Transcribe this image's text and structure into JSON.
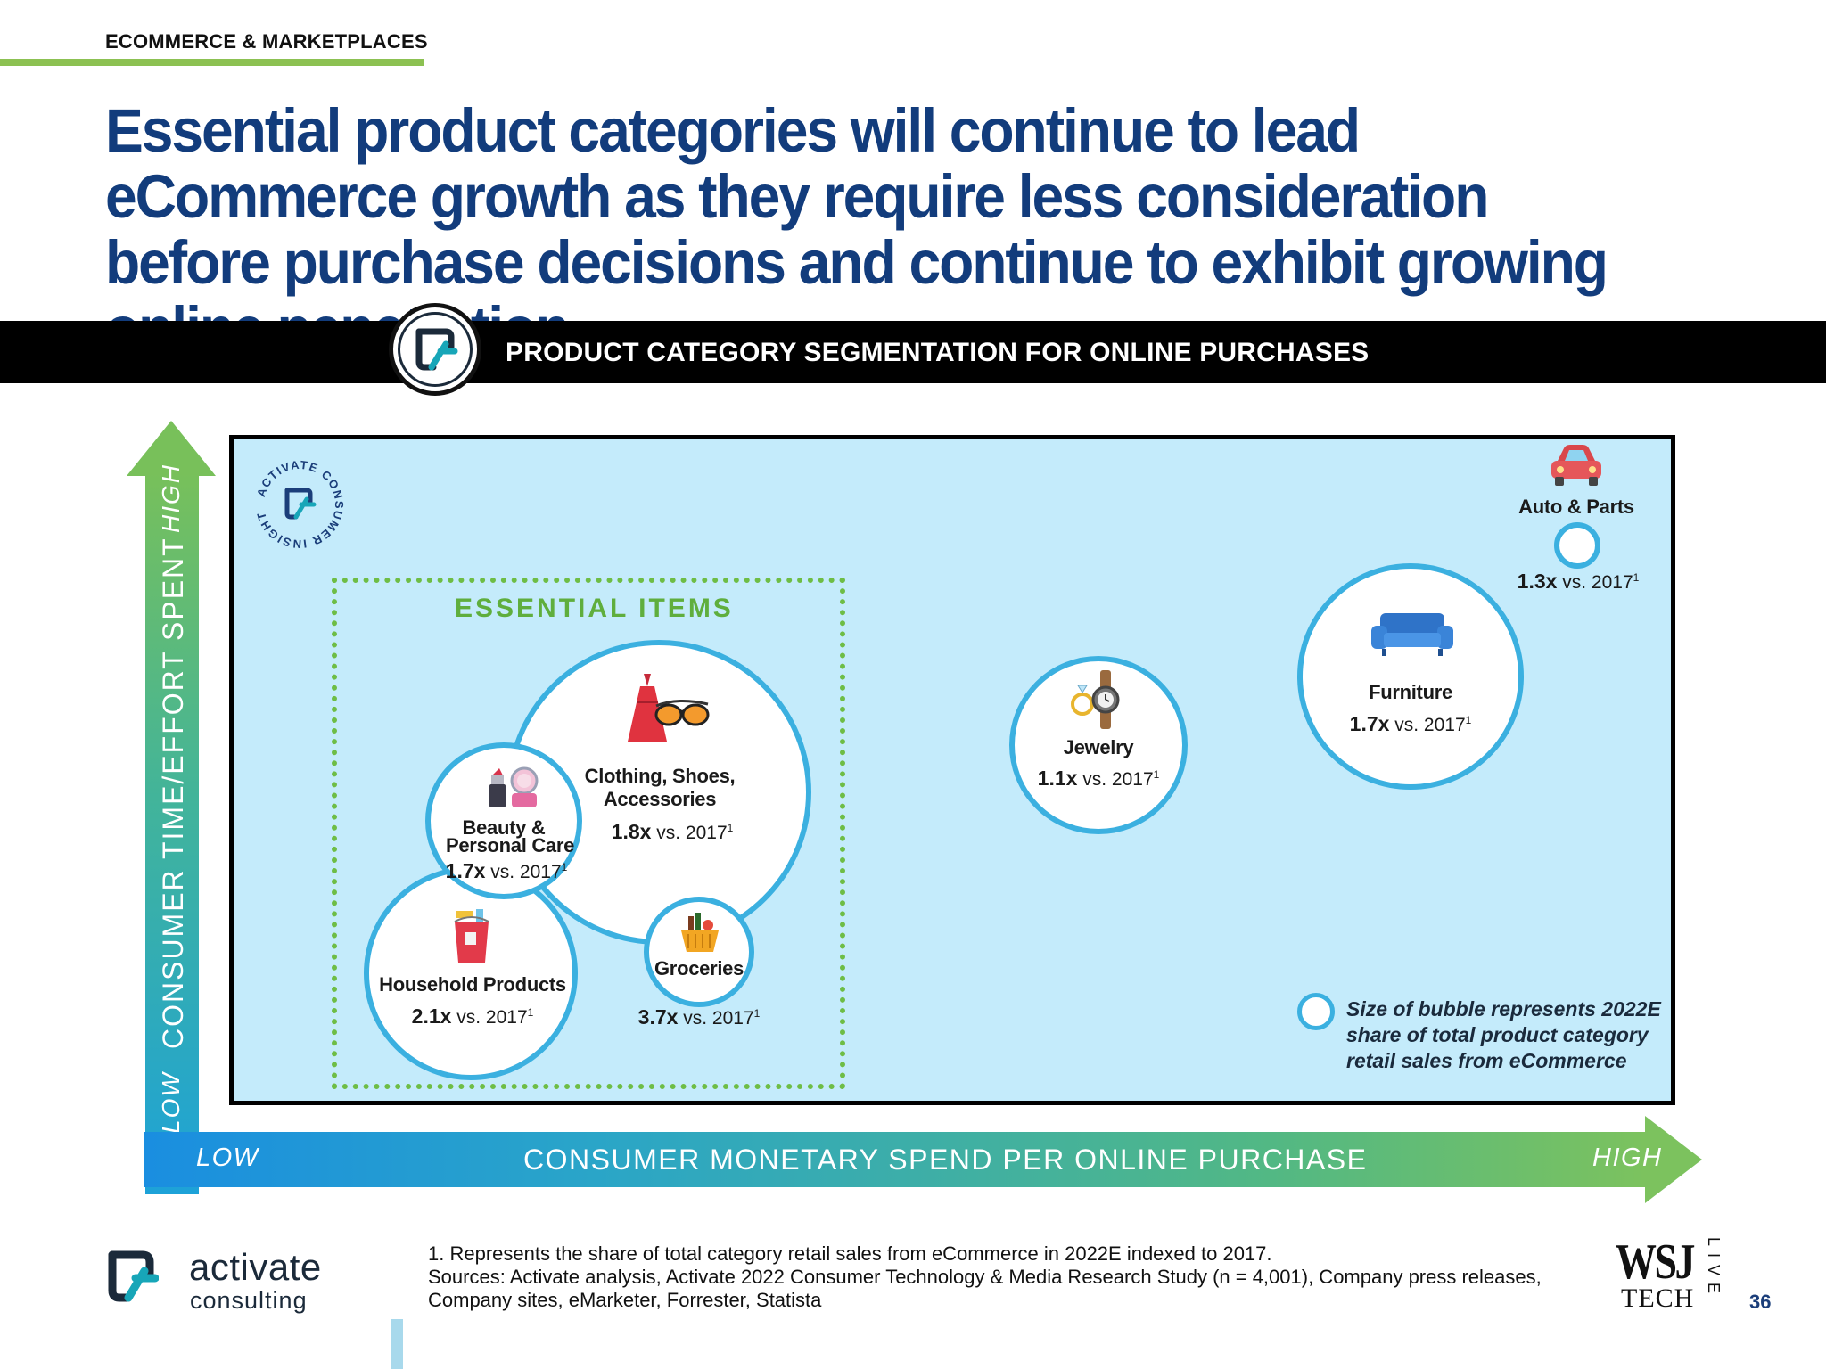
{
  "section": "ECOMMERCE & MARKETPLACES",
  "headline": "Essential product categories will continue to lead eCommerce growth as they require less consideration before purchase decisions and continue to exhibit growing online penetration",
  "banner_title": "PRODUCT CATEGORY SEGMENTATION FOR ONLINE PURCHASES",
  "y_axis": {
    "label": "CONSUMER TIME/EFFORT SPENT",
    "high": "HIGH",
    "low": "LOW"
  },
  "x_axis": {
    "label": "CONSUMER MONETARY SPEND PER ONLINE PURCHASE",
    "low": "LOW",
    "high": "HIGH"
  },
  "seal_text": "ACTIVATE CONSUMER INSIGHT",
  "essential_title": "ESSENTIAL ITEMS",
  "suffix": "vs. 2017",
  "footnote_marker": "1",
  "bubbles": {
    "auto": {
      "name": "Auto & Parts",
      "mult": "1.3x",
      "icon": "car-icon"
    },
    "furniture": {
      "name": "Furniture",
      "mult": "1.7x",
      "icon": "sofa-icon"
    },
    "jewelry": {
      "name": "Jewelry",
      "mult": "1.1x",
      "icon": "watch-ring-icon"
    },
    "clothing": {
      "name_line1": "Clothing, Shoes,",
      "name_line2": "Accessories",
      "mult": "1.8x",
      "icon": "dress-sunglasses-icon"
    },
    "beauty": {
      "name_line1": "Beauty &",
      "name_line2": "Personal Care",
      "mult": "1.7x",
      "icon": "lipstick-compact-icon"
    },
    "household": {
      "name": "Household Products",
      "mult": "2.1x",
      "icon": "cleaning-bucket-icon"
    },
    "groceries": {
      "name": "Groceries",
      "mult": "3.7x",
      "icon": "grocery-basket-icon"
    }
  },
  "legend": "Size of bubble represents 2022E share of total product category retail sales from eCommerce",
  "footer": {
    "brand": "activate",
    "brand_sub": "consulting",
    "note_line1": "1. Represents the share of total category retail sales from eCommerce in 2022E indexed to 2017.",
    "note_line2": "Sources: Activate analysis, Activate 2022 Consumer Technology & Media Research Study (n = 4,001), Company press releases,",
    "note_line3": "Company sites, eMarketer, Forrester, Statista",
    "wsj": "WSJ",
    "tech": "TECH",
    "live": "LIVE",
    "page": "36"
  },
  "colors": {
    "title_blue": "#123c7c",
    "bubble_border": "#3bb0e0",
    "plot_bg": "#c4ebfb",
    "essential_green": "#6ebd45"
  }
}
